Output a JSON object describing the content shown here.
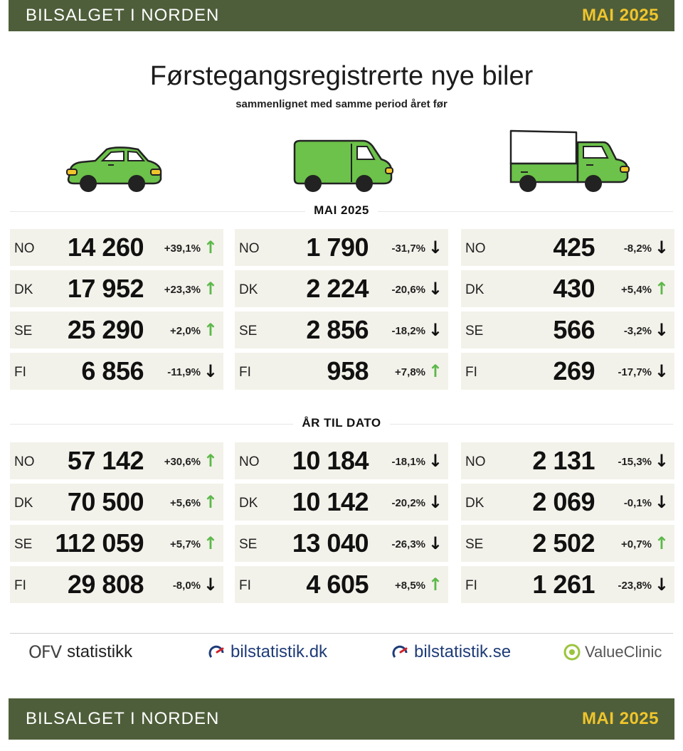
{
  "header": {
    "title": "BILSALGET I NORDEN",
    "date": "MAI 2025"
  },
  "headline": "Førstegangsregistrerte nye biler",
  "subheadline": "sammenlignet med samme period året før",
  "colors": {
    "banner": "#4e5e3a",
    "accent": "#f0c52c",
    "vehicle_green": "#6cc24a",
    "up_arrow": "#5cb84a",
    "cell_bg": "#f3f2ea"
  },
  "vehicles": [
    "car-icon",
    "van-icon",
    "truck-icon"
  ],
  "monthly": {
    "title": "MAI 2025",
    "columns": [
      {
        "vehicle": "car",
        "rows": [
          {
            "country": "NO",
            "value": "14 260",
            "change": "+39,1%",
            "arrow": "↑",
            "dir": "up"
          },
          {
            "country": "DK",
            "value": "17 952",
            "change": "+23,3%",
            "arrow": "↑",
            "dir": "up"
          },
          {
            "country": "SE",
            "value": "25 290",
            "change": "+2,0%",
            "arrow": "↑",
            "dir": "up"
          },
          {
            "country": "FI",
            "value": "6 856",
            "change": "-11,9%",
            "arrow": "↓",
            "dir": "down"
          }
        ]
      },
      {
        "vehicle": "van",
        "rows": [
          {
            "country": "NO",
            "value": "1 790",
            "change": "-31,7%",
            "arrow": "↓",
            "dir": "down"
          },
          {
            "country": "DK",
            "value": "2 224",
            "change": "-20,6%",
            "arrow": "↓",
            "dir": "down"
          },
          {
            "country": "SE",
            "value": "2 856",
            "change": "-18,2%",
            "arrow": "↓",
            "dir": "down"
          },
          {
            "country": "FI",
            "value": "958",
            "change": "+7,8%",
            "arrow": "↑",
            "dir": "up"
          }
        ]
      },
      {
        "vehicle": "truck",
        "rows": [
          {
            "country": "NO",
            "value": "425",
            "change": "-8,2%",
            "arrow": "↓",
            "dir": "down"
          },
          {
            "country": "DK",
            "value": "430",
            "change": "+5,4%",
            "arrow": "↑",
            "dir": "up"
          },
          {
            "country": "SE",
            "value": "566",
            "change": "-3,2%",
            "arrow": "↓",
            "dir": "down"
          },
          {
            "country": "FI",
            "value": "269",
            "change": "-17,7%",
            "arrow": "↓",
            "dir": "down"
          }
        ]
      }
    ]
  },
  "ytd": {
    "title": "ÅR TIL DATO",
    "columns": [
      {
        "vehicle": "car",
        "rows": [
          {
            "country": "NO",
            "value": "57 142",
            "change": "+30,6%",
            "arrow": "↑",
            "dir": "up"
          },
          {
            "country": "DK",
            "value": "70 500",
            "change": "+5,6%",
            "arrow": "↑",
            "dir": "up"
          },
          {
            "country": "SE",
            "value": "112 059",
            "change": "+5,7%",
            "arrow": "↑",
            "dir": "up"
          },
          {
            "country": "FI",
            "value": "29 808",
            "change": "-8,0%",
            "arrow": "↓",
            "dir": "down"
          }
        ]
      },
      {
        "vehicle": "van",
        "rows": [
          {
            "country": "NO",
            "value": "10 184",
            "change": "-18,1%",
            "arrow": "↓",
            "dir": "down"
          },
          {
            "country": "DK",
            "value": "10 142",
            "change": "-20,2%",
            "arrow": "↓",
            "dir": "down"
          },
          {
            "country": "SE",
            "value": "13 040",
            "change": "-26,3%",
            "arrow": "↓",
            "dir": "down"
          },
          {
            "country": "FI",
            "value": "4 605",
            "change": "+8,5%",
            "arrow": "↑",
            "dir": "up"
          }
        ]
      },
      {
        "vehicle": "truck",
        "rows": [
          {
            "country": "NO",
            "value": "2 131",
            "change": "-15,3%",
            "arrow": "↓",
            "dir": "down"
          },
          {
            "country": "DK",
            "value": "2 069",
            "change": "-0,1%",
            "arrow": "↓",
            "dir": "down"
          },
          {
            "country": "SE",
            "value": "2 502",
            "change": "+0,7%",
            "arrow": "↑",
            "dir": "up"
          },
          {
            "country": "FI",
            "value": "1 261",
            "change": "-23,8%",
            "arrow": "↓",
            "dir": "down"
          }
        ]
      }
    ]
  },
  "footer": {
    "logos": [
      {
        "name": "statistikk",
        "mark": "OFV"
      },
      {
        "name": "bilstatistik.dk"
      },
      {
        "name": "bilstatistik.se"
      },
      {
        "name": "ValueClinic"
      }
    ],
    "banner_title": "BILSALGET I NORDEN",
    "banner_date": "MAI 2025"
  }
}
